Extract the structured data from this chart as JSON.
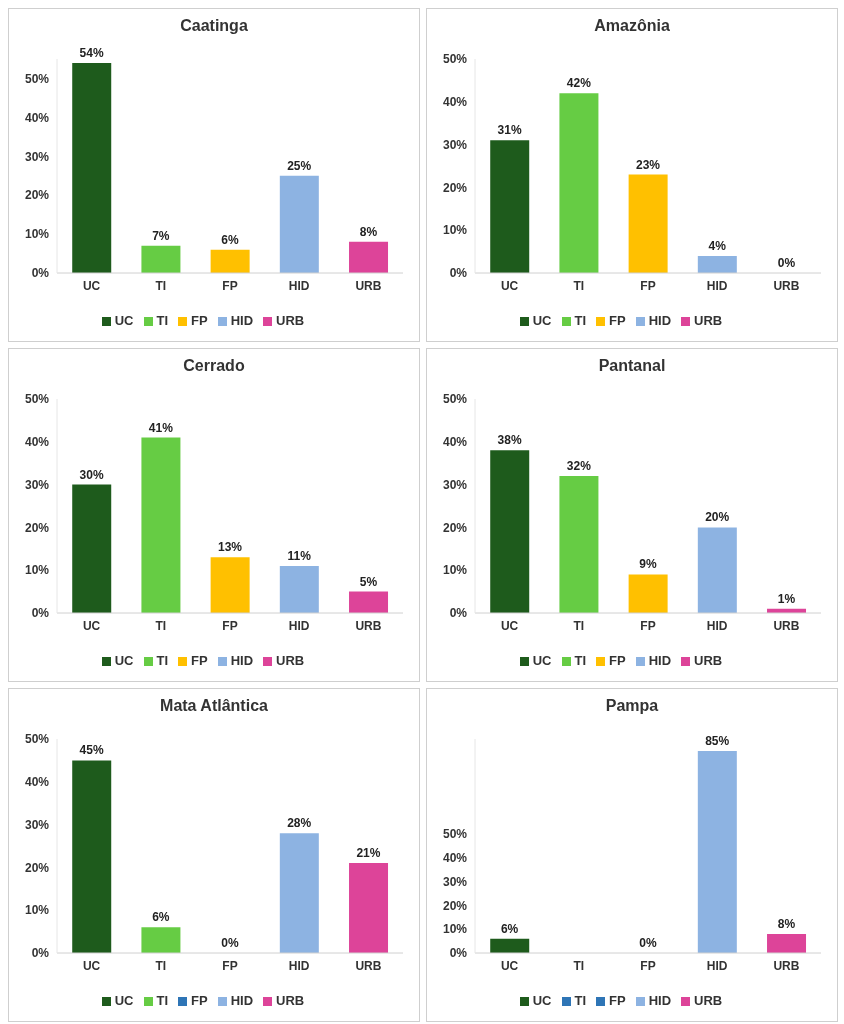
{
  "chart_data": [
    {
      "type": "bar",
      "title": "Caatinga",
      "categories": [
        "UC",
        "TI",
        "FP",
        "HID",
        "URB"
      ],
      "stacked": true,
      "ylim": [
        0,
        55
      ],
      "yticks": [
        {
          "value": 0,
          "label": "0%"
        },
        {
          "value": 10,
          "label": "10%"
        },
        {
          "value": 20,
          "label": "20%"
        },
        {
          "value": 30,
          "label": "30%"
        },
        {
          "value": 40,
          "label": "40%"
        },
        {
          "value": 50,
          "label": "50%"
        }
      ],
      "grid": false,
      "legend": "bottom",
      "series": [
        {
          "name": "UC",
          "color": "#1e5b1c",
          "values": [
            54,
            null,
            null,
            null,
            null
          ],
          "value_labels": [
            "54%",
            null,
            null,
            null,
            null
          ]
        },
        {
          "name": "TI",
          "color": "#66cc44",
          "values": [
            null,
            7,
            null,
            null,
            null
          ],
          "value_labels": [
            null,
            "7%",
            null,
            null,
            null
          ]
        },
        {
          "name": "FP",
          "color": "#ffc000",
          "values": [
            null,
            null,
            6,
            null,
            null
          ],
          "value_labels": [
            null,
            null,
            "6%",
            null,
            null
          ]
        },
        {
          "name": "HID",
          "color": "#8db3e2",
          "values": [
            null,
            null,
            null,
            25,
            null
          ],
          "value_labels": [
            null,
            null,
            null,
            "25%",
            null
          ]
        },
        {
          "name": "URB",
          "color": "#dd4499",
          "values": [
            null,
            null,
            null,
            null,
            8
          ],
          "value_labels": [
            null,
            null,
            null,
            null,
            "8%"
          ]
        }
      ]
    },
    {
      "type": "bar",
      "title": "Amazônia",
      "categories": [
        "UC",
        "TI",
        "FP",
        "HID",
        "URB"
      ],
      "stacked": true,
      "ylim": [
        0,
        50
      ],
      "yticks": [
        {
          "value": 0,
          "label": "0%"
        },
        {
          "value": 10,
          "label": "10%"
        },
        {
          "value": 20,
          "label": "20%"
        },
        {
          "value": 30,
          "label": "30%"
        },
        {
          "value": 40,
          "label": "40%"
        },
        {
          "value": 50,
          "label": "50%"
        }
      ],
      "grid": false,
      "legend": "bottom",
      "series": [
        {
          "name": "UC",
          "color": "#1e5b1c",
          "values": [
            31,
            null,
            null,
            null,
            null
          ],
          "value_labels": [
            "31%",
            null,
            null,
            null,
            null
          ]
        },
        {
          "name": "TI",
          "color": "#66cc44",
          "values": [
            null,
            42,
            null,
            null,
            null
          ],
          "value_labels": [
            null,
            "42%",
            null,
            null,
            null
          ]
        },
        {
          "name": "FP",
          "color": "#ffc000",
          "values": [
            null,
            null,
            23,
            null,
            null
          ],
          "value_labels": [
            null,
            null,
            "23%",
            null,
            null
          ]
        },
        {
          "name": "HID",
          "color": "#8db3e2",
          "values": [
            null,
            null,
            null,
            4,
            null
          ],
          "value_labels": [
            null,
            null,
            null,
            "4%",
            null
          ]
        },
        {
          "name": "URB",
          "color": "#dd4499",
          "values": [
            null,
            null,
            null,
            null,
            0
          ],
          "value_labels": [
            null,
            null,
            null,
            null,
            "0%"
          ]
        }
      ]
    },
    {
      "type": "bar",
      "title": "Cerrado",
      "categories": [
        "UC",
        "TI",
        "FP",
        "HID",
        "URB"
      ],
      "stacked": true,
      "ylim": [
        0,
        50
      ],
      "yticks": [
        {
          "value": 0,
          "label": "0%"
        },
        {
          "value": 10,
          "label": "10%"
        },
        {
          "value": 20,
          "label": "20%"
        },
        {
          "value": 30,
          "label": "30%"
        },
        {
          "value": 40,
          "label": "40%"
        },
        {
          "value": 50,
          "label": "50%"
        }
      ],
      "grid": false,
      "legend": "bottom",
      "series": [
        {
          "name": "UC",
          "color": "#1e5b1c",
          "values": [
            30,
            null,
            null,
            null,
            null
          ],
          "value_labels": [
            "30%",
            null,
            null,
            null,
            null
          ]
        },
        {
          "name": "TI",
          "color": "#66cc44",
          "values": [
            null,
            41,
            null,
            null,
            null
          ],
          "value_labels": [
            null,
            "41%",
            null,
            null,
            null
          ]
        },
        {
          "name": "FP",
          "color": "#ffc000",
          "values": [
            null,
            null,
            13,
            null,
            null
          ],
          "value_labels": [
            null,
            null,
            "13%",
            null,
            null
          ]
        },
        {
          "name": "HID",
          "color": "#8db3e2",
          "values": [
            null,
            null,
            null,
            11,
            null
          ],
          "value_labels": [
            null,
            null,
            null,
            "11%",
            null
          ]
        },
        {
          "name": "URB",
          "color": "#dd4499",
          "values": [
            null,
            null,
            null,
            null,
            5
          ],
          "value_labels": [
            null,
            null,
            null,
            null,
            "5%"
          ]
        }
      ]
    },
    {
      "type": "bar",
      "title": "Pantanal",
      "categories": [
        "UC",
        "TI",
        "FP",
        "HID",
        "URB"
      ],
      "stacked": true,
      "ylim": [
        0,
        50
      ],
      "yticks": [
        {
          "value": 0,
          "label": "0%"
        },
        {
          "value": 10,
          "label": "10%"
        },
        {
          "value": 20,
          "label": "20%"
        },
        {
          "value": 30,
          "label": "30%"
        },
        {
          "value": 40,
          "label": "40%"
        },
        {
          "value": 50,
          "label": "50%"
        }
      ],
      "grid": false,
      "legend": "bottom",
      "series": [
        {
          "name": "UC",
          "color": "#1e5b1c",
          "values": [
            38,
            null,
            null,
            null,
            null
          ],
          "value_labels": [
            "38%",
            null,
            null,
            null,
            null
          ]
        },
        {
          "name": "TI",
          "color": "#66cc44",
          "values": [
            null,
            32,
            null,
            null,
            null
          ],
          "value_labels": [
            null,
            "32%",
            null,
            null,
            null
          ]
        },
        {
          "name": "FP",
          "color": "#ffc000",
          "values": [
            null,
            null,
            9,
            null,
            null
          ],
          "value_labels": [
            null,
            null,
            "9%",
            null,
            null
          ]
        },
        {
          "name": "HID",
          "color": "#8db3e2",
          "values": [
            null,
            null,
            null,
            20,
            null
          ],
          "value_labels": [
            null,
            null,
            null,
            "20%",
            null
          ]
        },
        {
          "name": "URB",
          "color": "#dd4499",
          "values": [
            null,
            null,
            null,
            null,
            1
          ],
          "value_labels": [
            null,
            null,
            null,
            null,
            "1%"
          ]
        }
      ]
    },
    {
      "type": "bar",
      "title": "Mata Atlântica",
      "categories": [
        "UC",
        "TI",
        "FP",
        "HID",
        "URB"
      ],
      "stacked": true,
      "ylim": [
        0,
        50
      ],
      "yticks": [
        {
          "value": 0,
          "label": "0%"
        },
        {
          "value": 10,
          "label": "10%"
        },
        {
          "value": 20,
          "label": "20%"
        },
        {
          "value": 30,
          "label": "30%"
        },
        {
          "value": 40,
          "label": "40%"
        },
        {
          "value": 50,
          "label": "50%"
        }
      ],
      "grid": false,
      "legend": "bottom",
      "series": [
        {
          "name": "UC",
          "color": "#1e5b1c",
          "values": [
            45,
            null,
            null,
            null,
            null
          ],
          "value_labels": [
            "45%",
            null,
            null,
            null,
            null
          ]
        },
        {
          "name": "TI",
          "color": "#66cc44",
          "values": [
            null,
            6,
            null,
            null,
            null
          ],
          "value_labels": [
            null,
            "6%",
            null,
            null,
            null
          ]
        },
        {
          "name": "FP",
          "color": "#2e75b6",
          "values": [
            null,
            null,
            0,
            null,
            null
          ],
          "value_labels": [
            null,
            null,
            "0%",
            null,
            null
          ]
        },
        {
          "name": "HID",
          "color": "#8db3e2",
          "values": [
            null,
            null,
            null,
            28,
            null
          ],
          "value_labels": [
            null,
            null,
            null,
            "28%",
            null
          ]
        },
        {
          "name": "URB",
          "color": "#dd4499",
          "values": [
            null,
            null,
            null,
            null,
            21
          ],
          "value_labels": [
            null,
            null,
            null,
            null,
            "21%"
          ]
        }
      ]
    },
    {
      "type": "bar",
      "title": "Pampa",
      "categories": [
        "UC",
        "TI",
        "FP",
        "HID",
        "URB"
      ],
      "stacked": true,
      "ylim": [
        0,
        90
      ],
      "yticks": [
        {
          "value": 0,
          "label": "0%"
        },
        {
          "value": 10,
          "label": "10%"
        },
        {
          "value": 20,
          "label": "20%"
        },
        {
          "value": 30,
          "label": "30%"
        },
        {
          "value": 40,
          "label": "40%"
        },
        {
          "value": 50,
          "label": "50%"
        }
      ],
      "grid": false,
      "legend": "bottom",
      "series": [
        {
          "name": "UC",
          "color": "#1e5b1c",
          "values": [
            6,
            null,
            null,
            null,
            null
          ],
          "value_labels": [
            "6%",
            null,
            null,
            null,
            null
          ]
        },
        {
          "name": "TI",
          "color": "#2e75b6",
          "values": [
            null,
            null,
            null,
            null,
            null
          ]
        },
        {
          "name": "FP",
          "color": "#2e75b6",
          "values": [
            null,
            null,
            0,
            null,
            null
          ],
          "value_labels": [
            null,
            null,
            "0%",
            null,
            null
          ]
        },
        {
          "name": "HID",
          "color": "#8db3e2",
          "values": [
            null,
            null,
            null,
            85,
            null
          ],
          "value_labels": [
            null,
            null,
            null,
            "85%",
            null
          ]
        },
        {
          "name": "URB",
          "color": "#dd4499",
          "values": [
            null,
            null,
            null,
            null,
            8
          ],
          "value_labels": [
            null,
            null,
            null,
            null,
            "8%"
          ]
        }
      ]
    }
  ]
}
